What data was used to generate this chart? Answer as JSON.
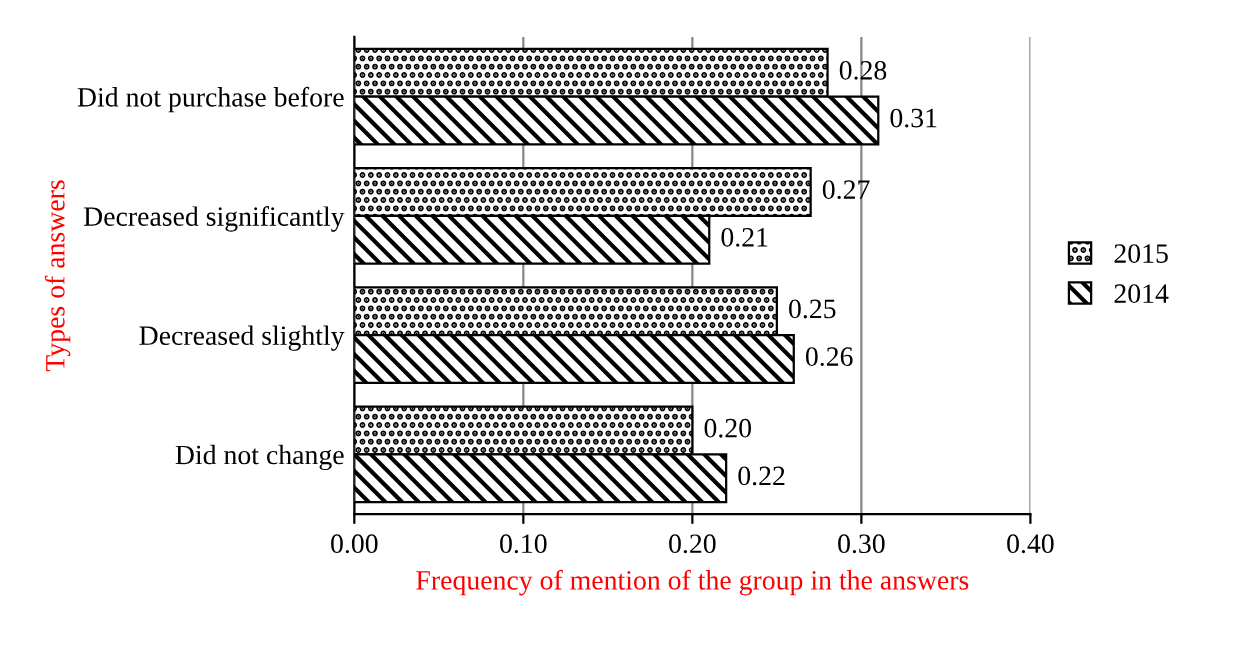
{
  "chart_data": {
    "type": "bar",
    "orientation": "horizontal",
    "xlabel": "Frequency of mention of the group in the answers",
    "ylabel": "Types of answers",
    "categories": [
      "Did not purchase before",
      "Decreased significantly",
      "Decreased slightly",
      "Did not change"
    ],
    "series": [
      {
        "name": "2015",
        "color": "#000000",
        "values": [
          0.28,
          0.27,
          0.25,
          0.2
        ],
        "value_labels": [
          "0.28",
          "0.27",
          "0.25",
          "0.20"
        ]
      },
      {
        "name": "2014",
        "color": "#000000",
        "values": [
          0.31,
          0.21,
          0.26,
          0.22
        ],
        "value_labels": [
          "0.31",
          "0.21",
          "0.26",
          "0.22"
        ]
      }
    ],
    "xlim": [
      0,
      0.4
    ],
    "xticks": [
      {
        "value": 0,
        "label": "0.00"
      },
      {
        "value": 0.1,
        "label": "0.10"
      },
      {
        "value": 0.2,
        "label": "0.20"
      },
      {
        "value": 0.3,
        "label": "0.30"
      },
      {
        "value": 0.4,
        "label": "0.40"
      }
    ],
    "grid": "x",
    "legend": "right"
  }
}
